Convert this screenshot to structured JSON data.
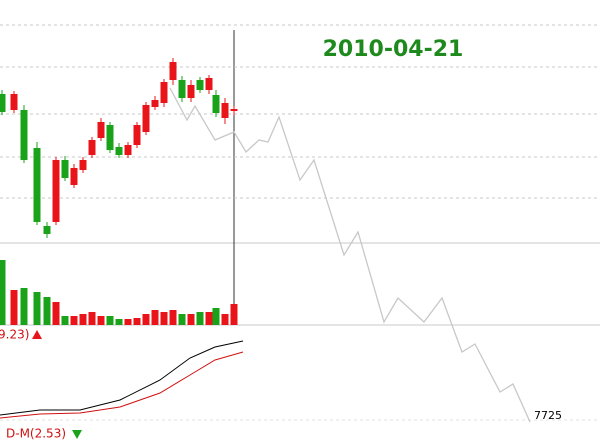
{
  "chart_data": [
    {
      "type": "candlestick",
      "annotation": "2010-04-21",
      "up_color": "#e8141a",
      "down_color": "#1aa31a",
      "ylim": [
        -120,
        320
      ],
      "yticks": [
        295,
        253,
        206,
        163,
        122
      ],
      "grid": true,
      "x": [
        2,
        14,
        24,
        37,
        47,
        56,
        65,
        74,
        83,
        92,
        101,
        110,
        119,
        128,
        137,
        146,
        155,
        164,
        173,
        182,
        191,
        200,
        209,
        216,
        225,
        234
      ],
      "open": [
        226,
        210,
        210,
        172,
        94,
        98,
        160,
        135,
        150,
        165,
        182,
        195,
        173,
        165,
        175,
        188,
        213,
        217,
        240,
        240,
        222,
        240,
        230,
        225,
        202,
        209
      ],
      "close": [
        208,
        226,
        160,
        98,
        86,
        160,
        142,
        152,
        160,
        180,
        198,
        170,
        165,
        175,
        195,
        215,
        220,
        238,
        258,
        222,
        235,
        230,
        242,
        207,
        217,
        211
      ],
      "high": [
        230,
        229,
        215,
        178,
        98,
        163,
        164,
        156,
        163,
        183,
        202,
        198,
        177,
        178,
        198,
        218,
        224,
        241,
        262,
        244,
        240,
        243,
        245,
        230,
        222,
        214
      ],
      "low": [
        205,
        207,
        157,
        95,
        82,
        95,
        139,
        132,
        147,
        162,
        179,
        167,
        162,
        162,
        172,
        185,
        210,
        213,
        235,
        218,
        218,
        227,
        226,
        203,
        196,
        205
      ],
      "overlay": {
        "color": "#c8c8c8",
        "end_label": "7725",
        "x": [
          170,
          187,
          195,
          215,
          234,
          246,
          259,
          268,
          279,
          300,
          314,
          344,
          358,
          384,
          398,
          424,
          442,
          462,
          475,
          500,
          513,
          530
        ],
        "values": [
          232,
          200,
          214,
          180,
          188,
          168,
          180,
          178,
          203,
          140,
          160,
          65,
          88,
          -2,
          22,
          -2,
          22,
          -32,
          -24,
          -72,
          -64,
          -102
        ]
      }
    },
    {
      "type": "bar",
      "label": "9.23)",
      "ylim": [
        0,
        80
      ],
      "values": [
        65,
        35,
        37,
        33,
        28,
        23,
        9,
        9,
        11,
        13,
        9,
        9,
        6,
        6,
        7,
        11,
        15,
        13,
        15,
        11,
        11,
        13,
        13,
        17,
        11,
        21
      ]
    },
    {
      "type": "line",
      "label": "D-M(2.53)",
      "ylim": [
        0,
        80
      ],
      "x": [
        0,
        40,
        80,
        120,
        160,
        190,
        215,
        243
      ],
      "series": [
        {
          "color": "#000000",
          "values": [
            5,
            10,
            10,
            20,
            40,
            62,
            73,
            79
          ]
        },
        {
          "color": "#d01010",
          "values": [
            2,
            6,
            7,
            13,
            27,
            45,
            60,
            68
          ]
        }
      ]
    }
  ]
}
